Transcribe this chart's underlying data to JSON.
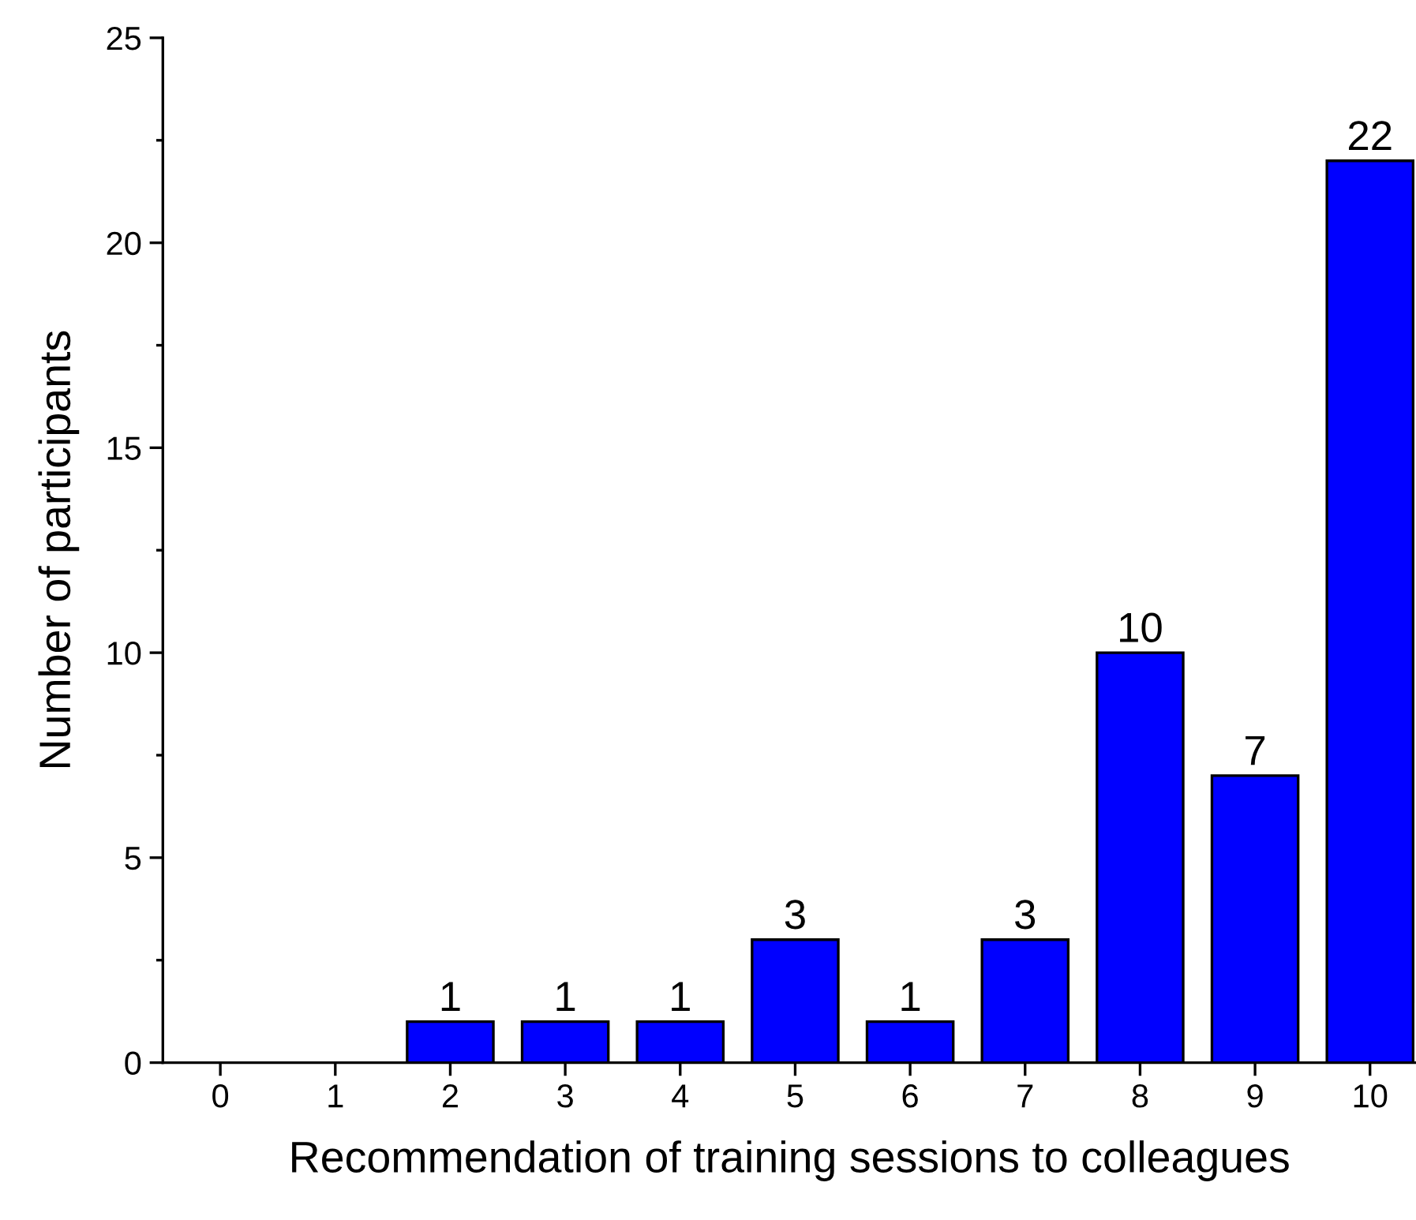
{
  "chart_data": {
    "type": "bar",
    "xlabel": "Recommendation of training sessions to colleagues",
    "ylabel": "Number of participants",
    "categories": [
      "0",
      "1",
      "2",
      "3",
      "4",
      "5",
      "6",
      "7",
      "8",
      "9",
      "10"
    ],
    "values": [
      0,
      0,
      1,
      1,
      1,
      3,
      1,
      3,
      10,
      7,
      22
    ],
    "value_labels": [
      null,
      null,
      "1",
      "1",
      "1",
      "3",
      "1",
      "3",
      "10",
      "7",
      "22"
    ],
    "color": "#0000ff",
    "ylim": [
      0,
      25
    ],
    "yticks": [
      0,
      5,
      10,
      15,
      20,
      25
    ],
    "grid": false
  }
}
